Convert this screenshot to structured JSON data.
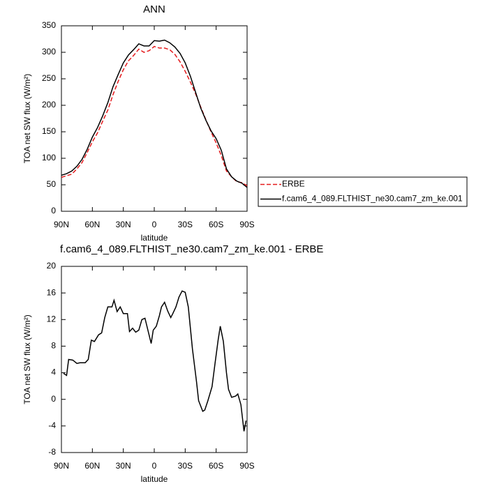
{
  "chart_data": [
    {
      "type": "line",
      "title": "ANN",
      "xlabel": "latitude",
      "ylabel": "TOA net SW flux (W/m²)",
      "x": [
        90,
        85,
        80,
        75,
        70,
        65,
        60,
        55,
        50,
        45,
        40,
        35,
        30,
        25,
        20,
        15,
        10,
        5,
        0,
        -5,
        -10,
        -15,
        -20,
        -25,
        -30,
        -35,
        -40,
        -45,
        -50,
        -55,
        -60,
        -65,
        -70,
        -75,
        -80,
        -85,
        -90
      ],
      "series": [
        {
          "name": "ERBE",
          "color": "#e41a1c",
          "line_style": "dashed",
          "values": [
            64,
            67,
            70,
            80,
            92,
            111,
            131,
            148,
            170,
            191,
            220,
            245,
            267,
            284,
            294,
            306,
            300,
            303,
            311,
            308,
            308,
            305,
            296,
            282,
            264,
            244,
            222,
            197,
            173,
            150,
            129,
            105,
            76,
            65,
            56,
            54,
            48
          ]
        },
        {
          "name": "f.cam6_4_089.FLTHIST_ne30.cam7_zm_ke.001",
          "color": "#000000",
          "line_style": "solid",
          "values": [
            68,
            71,
            76,
            85,
            98,
            117,
            140,
            158,
            180,
            205,
            235,
            258,
            280,
            295,
            305,
            316,
            312,
            312,
            322,
            321,
            323,
            318,
            310,
            298,
            280,
            255,
            225,
            195,
            172,
            152,
            137,
            115,
            80,
            65,
            57,
            53,
            45
          ]
        }
      ],
      "xlim": [
        90,
        -90
      ],
      "xticks": [
        {
          "value": 90,
          "label": "90N"
        },
        {
          "value": 60,
          "label": "60N"
        },
        {
          "value": 30,
          "label": "30N"
        },
        0,
        {
          "value": -30,
          "label": "30S"
        },
        {
          "value": -60,
          "label": "60S"
        },
        {
          "value": -90,
          "label": "90S"
        }
      ],
      "ylim": [
        0,
        350
      ],
      "yticks": [
        0,
        50,
        100,
        150,
        200,
        250,
        300,
        350
      ]
    },
    {
      "type": "line",
      "title": "f.cam6_4_089.FLTHIST_ne30.cam7_zm_ke.001 - ERBE",
      "xlabel": "latitude",
      "ylabel": "TOA net SW flux (W/m²)",
      "x": [
        88,
        85,
        83,
        79,
        75,
        72,
        67,
        64,
        61,
        58,
        54,
        51,
        48,
        45,
        41,
        39,
        36,
        33,
        30,
        26,
        24,
        21,
        18,
        15,
        12,
        9,
        6,
        3,
        1,
        -2,
        -5,
        -7,
        -10,
        -13,
        -16,
        -18,
        -21,
        -24,
        -27,
        -30,
        -33,
        -37,
        -41,
        -43,
        -47,
        -49,
        -52,
        -56,
        -59,
        -62,
        -64,
        -67,
        -70,
        -72,
        -75,
        -79,
        -81,
        -84,
        -87,
        -89
      ],
      "series": [
        {
          "name": "f.cam6_4_089.FLTHIST_ne30.cam7_zm_ke.001 - ERBE",
          "color": "#000000",
          "line_style": "solid",
          "values": [
            3.9,
            3.6,
            6.0,
            5.9,
            5.4,
            5.5,
            5.5,
            6.0,
            8.9,
            8.7,
            9.7,
            10.0,
            12.3,
            13.9,
            13.9,
            14.9,
            13.2,
            13.9,
            12.9,
            12.9,
            10.2,
            10.7,
            10.1,
            10.4,
            12.0,
            12.2,
            10.3,
            8.4,
            10.4,
            11.0,
            12.6,
            13.9,
            14.6,
            13.3,
            12.3,
            12.9,
            13.9,
            15.4,
            16.3,
            16.1,
            13.9,
            7.6,
            2.6,
            -0.2,
            -1.8,
            -1.6,
            -0.2,
            1.9,
            5.5,
            9.0,
            11.0,
            8.7,
            4.0,
            1.5,
            0.3,
            0.5,
            0.8,
            -0.8,
            -4.8,
            -3.2
          ]
        }
      ],
      "xlim": [
        90,
        -90
      ],
      "xticks": [
        {
          "value": 90,
          "label": "90N"
        },
        {
          "value": 60,
          "label": "60N"
        },
        {
          "value": 30,
          "label": "30N"
        },
        0,
        {
          "value": -30,
          "label": "30S"
        },
        {
          "value": -60,
          "label": "60S"
        },
        {
          "value": -90,
          "label": "90S"
        }
      ],
      "ylim": [
        -8,
        20
      ],
      "yticks": [
        -8,
        -4,
        0,
        4,
        8,
        12,
        16,
        20
      ]
    }
  ]
}
